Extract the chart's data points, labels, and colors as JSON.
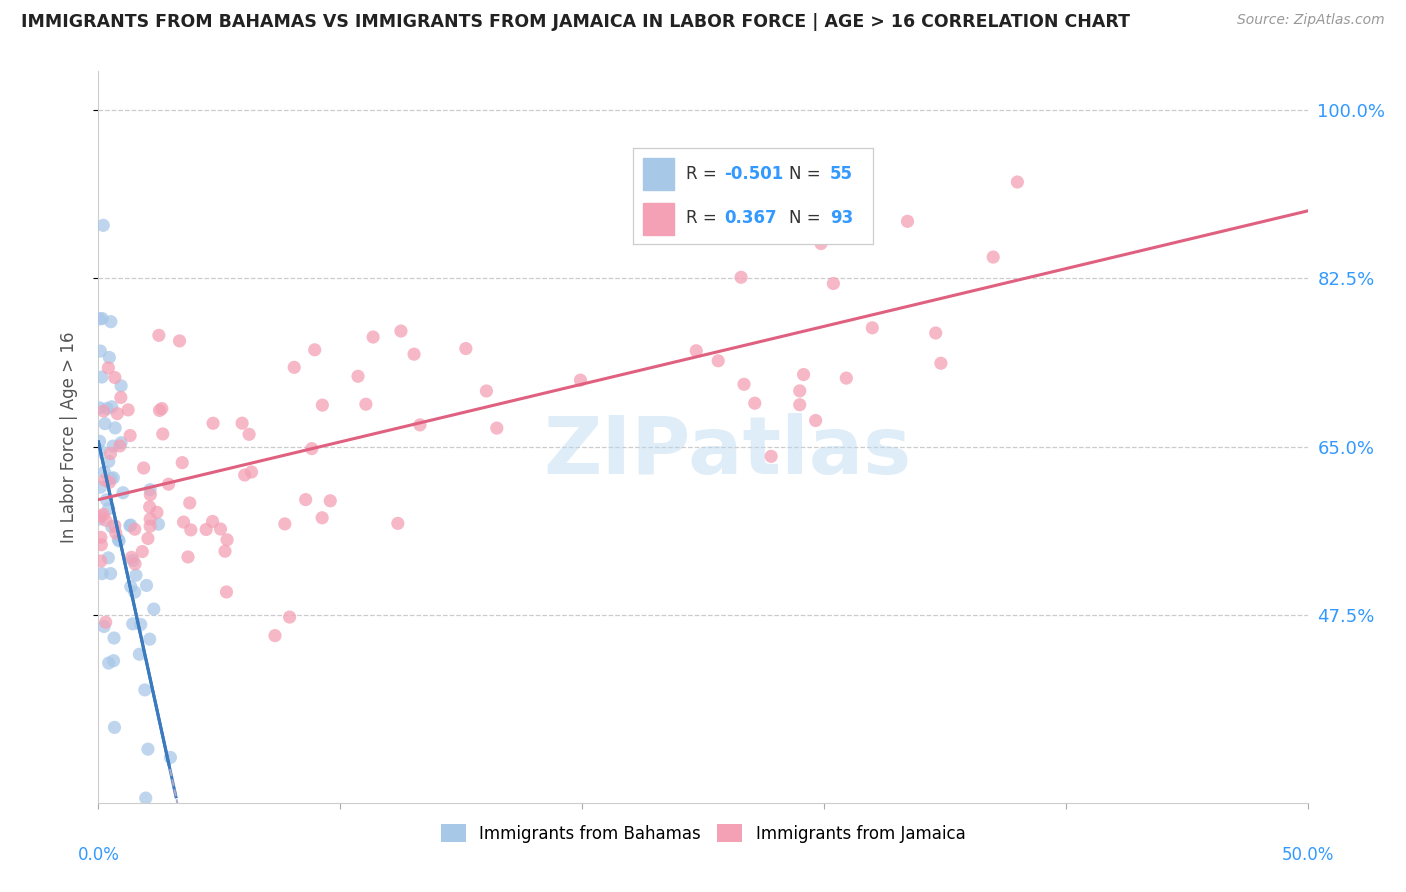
{
  "title": "IMMIGRANTS FROM BAHAMAS VS IMMIGRANTS FROM JAMAICA IN LABOR FORCE | AGE > 16 CORRELATION CHART",
  "source": "Source: ZipAtlas.com",
  "ylabel": "In Labor Force | Age > 16",
  "ytick_labels": [
    "100.0%",
    "82.5%",
    "65.0%",
    "47.5%"
  ],
  "ytick_values": [
    1.0,
    0.825,
    0.65,
    0.475
  ],
  "xmin": 0.0,
  "xmax": 0.5,
  "ymin": 0.28,
  "ymax": 1.04,
  "legend_r_bahamas": "-0.501",
  "legend_n_bahamas": "55",
  "legend_r_jamaica": "0.367",
  "legend_n_jamaica": "93",
  "color_bahamas": "#a8c8e8",
  "color_jamaica": "#f4a0b5",
  "line_color_bahamas": "#3a7abf",
  "line_color_jamaica": "#e06080",
  "watermark": "ZIPatlas",
  "bah_intercept": 0.655,
  "bah_slope": -11.5,
  "jam_intercept": 0.595,
  "jam_slope": 0.6
}
